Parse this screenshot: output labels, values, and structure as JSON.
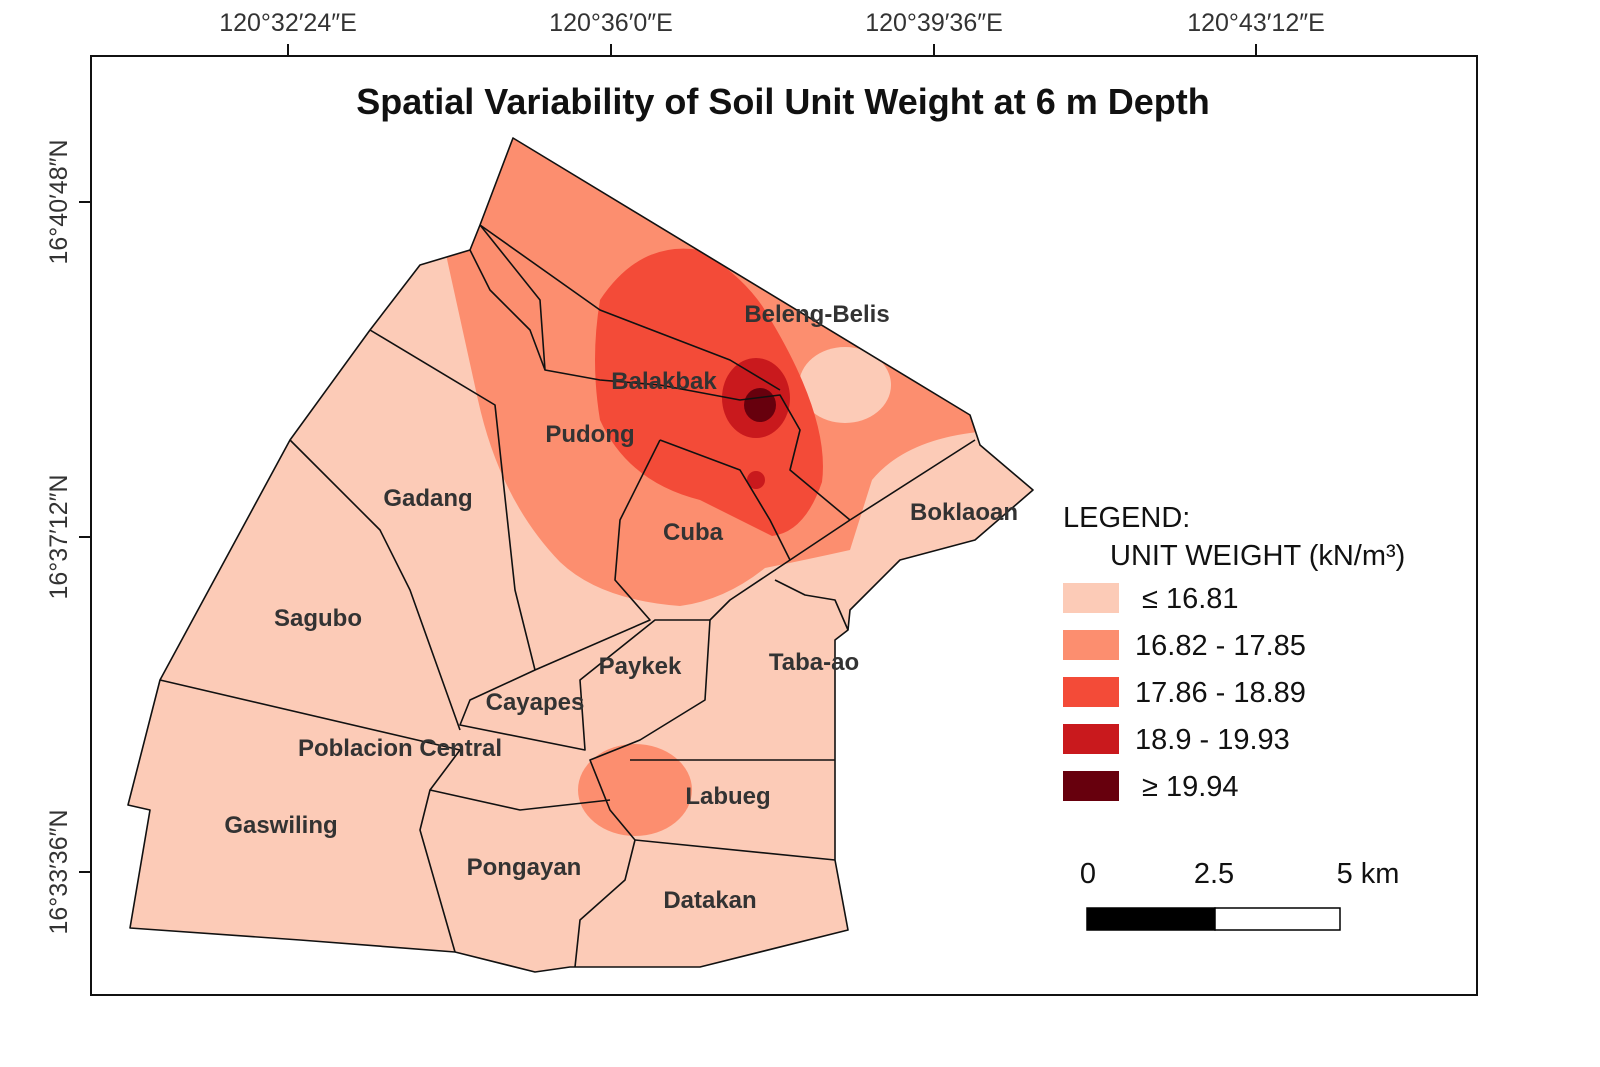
{
  "title": "Spatial Variability of Soil Unit Weight at 6 m Depth",
  "graticule": {
    "longitude": [
      "120°32′24″E",
      "120°36′0″E",
      "120°39′36″E",
      "120°43′12″E"
    ],
    "latitude": [
      "16°40′48″N",
      "16°37′12″N",
      "16°33′36″N"
    ]
  },
  "areas": [
    {
      "label": "Beleng-Belis"
    },
    {
      "label": "Balakbak"
    },
    {
      "label": "Pudong"
    },
    {
      "label": "Gadang"
    },
    {
      "label": "Boklaoan"
    },
    {
      "label": "Cuba"
    },
    {
      "label": "Sagubo"
    },
    {
      "label": "Taba-ao"
    },
    {
      "label": "Paykek"
    },
    {
      "label": "Cayapes"
    },
    {
      "label": "Poblacion Central"
    },
    {
      "label": "Labueg"
    },
    {
      "label": "Gaswiling"
    },
    {
      "label": "Pongayan"
    },
    {
      "label": "Datakan"
    }
  ],
  "legend": {
    "title": "LEGEND:",
    "subtitle": "UNIT WEIGHT (kN/m³)",
    "classes": [
      {
        "label": "≤ 16.81",
        "color": "#fccbb7"
      },
      {
        "label": "16.82 - 17.85",
        "color": "#fc8e6f"
      },
      {
        "label": "17.86 - 18.89",
        "color": "#f34b38"
      },
      {
        "label": "18.9 - 19.93",
        "color": "#c9191d"
      },
      {
        "label": "≥ 19.94",
        "color": "#67000d"
      }
    ]
  },
  "scale_bar": {
    "labels": [
      "0",
      "2.5",
      "5 km"
    ]
  }
}
